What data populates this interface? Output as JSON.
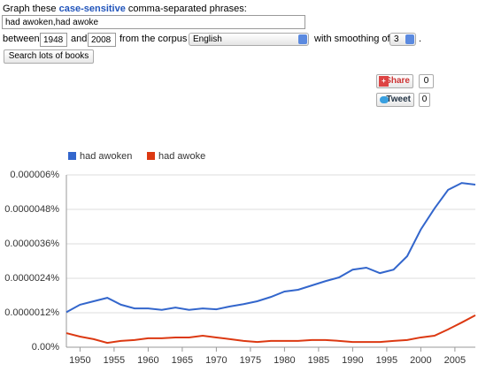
{
  "form": {
    "prompt_start": "Graph these",
    "prompt_link": "case-sensitive",
    "prompt_end": "comma-separated phrases:",
    "phrases": "had awoken,had awoke",
    "between": "between",
    "start_year": "1948",
    "and": "and",
    "end_year": "2008",
    "corpus_label": "from the corpus",
    "corpus": "English",
    "smoothing_label": "with smoothing of",
    "smoothing": "3",
    "period": ".",
    "search_button": "Search lots of books"
  },
  "social": {
    "share": "Share",
    "share_count": 0,
    "tweet": "Tweet",
    "tweet_count": 0
  },
  "chart_data": {
    "type": "line",
    "x": [
      1948,
      1950,
      1952,
      1954,
      1956,
      1958,
      1960,
      1962,
      1964,
      1966,
      1968,
      1970,
      1972,
      1974,
      1976,
      1978,
      1980,
      1982,
      1984,
      1986,
      1988,
      1990,
      1992,
      1994,
      1996,
      1998,
      2000,
      2002,
      2004,
      2006,
      2008
    ],
    "series": [
      {
        "name": "had awoken",
        "color": "#3366cc",
        "values": [
          1.22e-06,
          1.48e-06,
          1.6e-06,
          1.72e-06,
          1.48e-06,
          1.35e-06,
          1.35e-06,
          1.3e-06,
          1.38e-06,
          1.3e-06,
          1.35e-06,
          1.32e-06,
          1.42e-06,
          1.5e-06,
          1.6e-06,
          1.75e-06,
          1.94e-06,
          2e-06,
          2.15e-06,
          2.3e-06,
          2.43e-06,
          2.7e-06,
          2.77e-06,
          2.58e-06,
          2.7e-06,
          3.17e-06,
          4.1e-06,
          4.83e-06,
          5.48e-06,
          5.72e-06,
          5.66e-06
        ]
      },
      {
        "name": "had awoke",
        "color": "#dc3912",
        "values": [
          4.9e-07,
          3.7e-07,
          2.8e-07,
          1.5e-07,
          2.2e-07,
          2.5e-07,
          3.1e-07,
          3.1e-07,
          3.4e-07,
          3.4e-07,
          4e-07,
          3.4e-07,
          2.8e-07,
          2.2e-07,
          1.8e-07,
          2.2e-07,
          2.2e-07,
          2.2e-07,
          2.5e-07,
          2.5e-07,
          2.2e-07,
          1.8e-07,
          1.8e-07,
          1.8e-07,
          2.2e-07,
          2.5e-07,
          3.4e-07,
          4e-07,
          6.2e-07,
          8.6e-07,
          1.11e-06
        ]
      }
    ],
    "xlim": [
      1948,
      2008
    ],
    "xticks": [
      1950,
      1955,
      1960,
      1965,
      1970,
      1975,
      1980,
      1985,
      1990,
      1995,
      2000,
      2005
    ],
    "ylim": [
      0,
      6e-06
    ],
    "yticks": [
      {
        "value": 0,
        "label": "0.00%"
      },
      {
        "value": 1.2e-06,
        "label": "0.0000012%"
      },
      {
        "value": 2.4e-06,
        "label": "0.0000024%"
      },
      {
        "value": 3.6e-06,
        "label": "0.0000036%"
      },
      {
        "value": 4.8e-06,
        "label": "0.0000048%"
      },
      {
        "value": 6e-06,
        "label": "0.000006%"
      }
    ],
    "grid": true
  }
}
